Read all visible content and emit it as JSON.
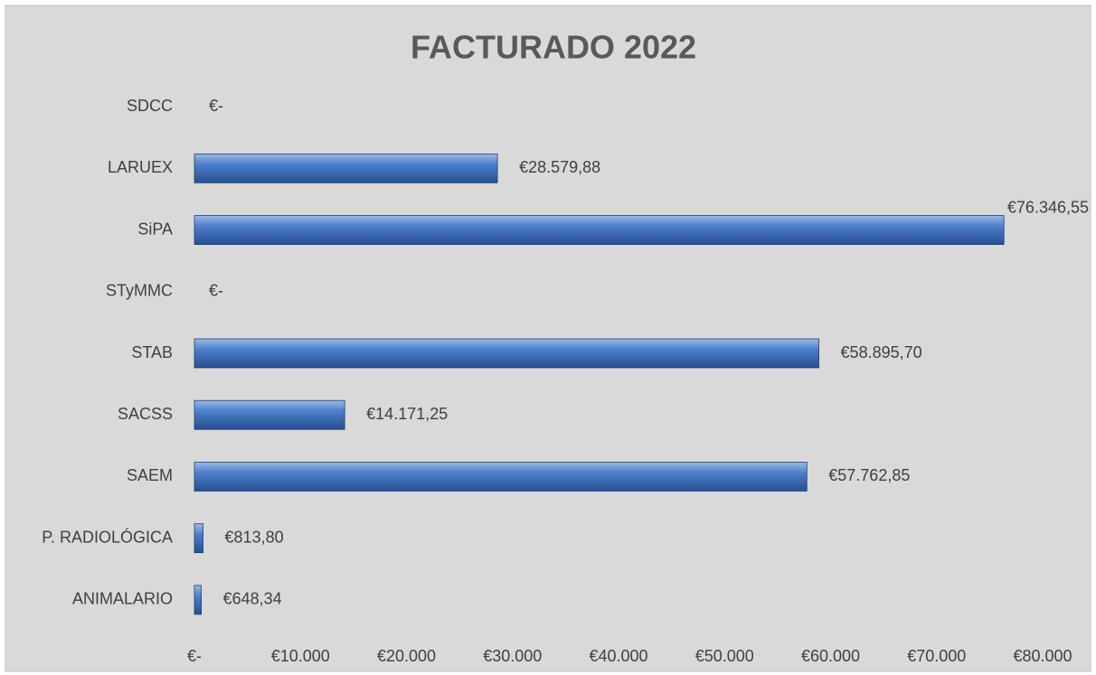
{
  "chart_data": {
    "type": "bar",
    "orientation": "horizontal",
    "title": "FACTURADO 2022",
    "categories": [
      "SDCC",
      "LARUEX",
      "SiPA",
      "STyMMC",
      "STAB",
      "SACSS",
      "SAEM",
      "P. RADIOLÓGICA",
      "ANIMALARIO"
    ],
    "values": [
      0,
      28579.88,
      76346.55,
      0,
      58895.7,
      14171.25,
      57762.85,
      813.8,
      648.34
    ],
    "value_labels": [
      "€-",
      "€28.579,88",
      "€76.346,55",
      "€-",
      "€58.895,70",
      "€14.171,25",
      "€57.762,85",
      "€813,80",
      "€648,34"
    ],
    "color": "#3a6fc0",
    "xlim": [
      0,
      80000
    ],
    "xticks": [
      {
        "value": 0,
        "label": "€-"
      },
      {
        "value": 10000,
        "label": "€10.000"
      },
      {
        "value": 20000,
        "label": "€20.000"
      },
      {
        "value": 30000,
        "label": "€30.000"
      },
      {
        "value": 40000,
        "label": "€40.000"
      },
      {
        "value": 50000,
        "label": "€50.000"
      },
      {
        "value": 60000,
        "label": "€60.000"
      },
      {
        "value": 70000,
        "label": "€70.000"
      },
      {
        "value": 80000,
        "label": "€80.000"
      }
    ],
    "grid": false
  }
}
